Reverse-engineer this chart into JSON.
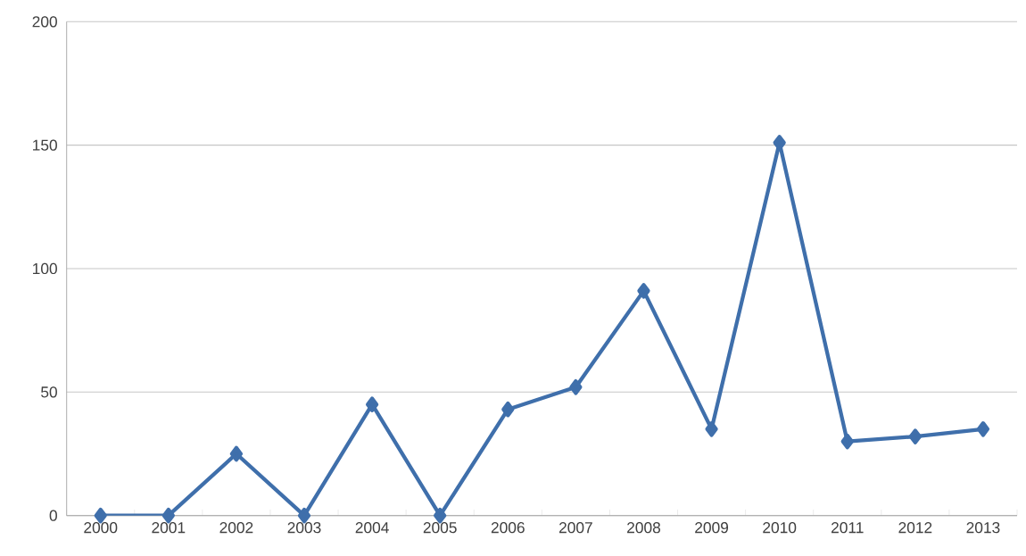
{
  "chart_data": {
    "type": "line",
    "categories": [
      "2000",
      "2001",
      "2002",
      "2003",
      "2004",
      "2005",
      "2006",
      "2007",
      "2008",
      "2009",
      "2010",
      "2011",
      "2012",
      "2013"
    ],
    "values": [
      0,
      0,
      25,
      0,
      45,
      0,
      43,
      52,
      91,
      35,
      151,
      30,
      32,
      35
    ],
    "color": "#3f6fab",
    "ylim": [
      0,
      200
    ],
    "yticks": [
      0,
      50,
      100,
      150,
      200
    ],
    "grid": "y",
    "marker": "diamond",
    "line_style": "solid"
  }
}
